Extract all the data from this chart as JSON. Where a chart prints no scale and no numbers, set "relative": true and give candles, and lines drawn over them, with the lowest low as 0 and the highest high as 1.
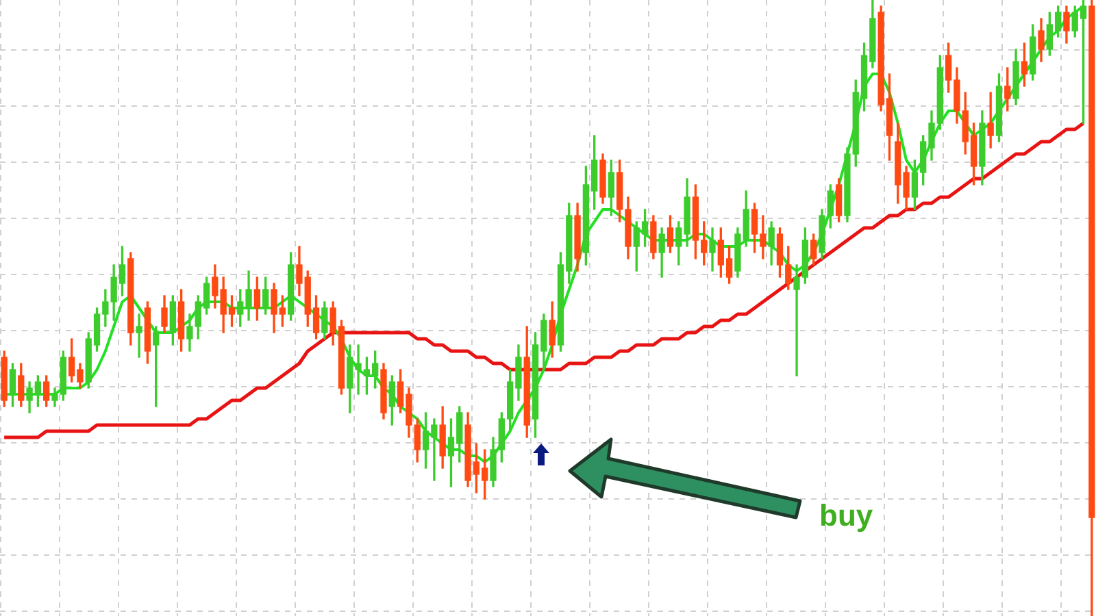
{
  "chart_data": {
    "type": "candlestick",
    "relative": true,
    "grid": true,
    "legend": false,
    "categories": [
      null,
      null,
      null,
      null,
      null,
      null,
      null,
      null,
      null,
      null,
      null,
      null,
      null,
      null,
      null,
      null,
      null,
      null,
      null,
      null,
      null,
      null,
      null,
      null,
      null,
      null,
      null,
      null,
      null,
      null,
      null,
      null,
      null,
      null,
      null,
      null,
      null,
      null,
      null,
      null,
      null,
      null,
      null,
      null,
      null,
      null,
      null,
      null,
      null,
      null,
      null,
      null,
      null,
      null,
      null,
      null,
      null,
      null,
      null,
      null,
      null,
      null,
      null,
      null,
      null,
      null,
      null,
      null,
      null,
      null,
      null,
      null,
      null,
      null,
      null,
      null,
      null,
      null,
      null,
      null,
      null,
      null,
      null,
      null,
      null,
      null,
      null,
      null,
      null,
      null,
      null,
      null,
      null,
      null,
      null,
      null,
      null,
      null,
      null,
      null,
      null,
      null,
      null,
      null,
      null,
      null,
      null,
      null,
      null,
      null,
      null,
      null,
      null,
      null,
      null,
      null,
      null,
      null,
      null,
      null,
      null,
      null,
      null,
      null,
      null,
      null,
      null,
      null,
      null,
      null
    ],
    "ohlc": [
      [
        0.42,
        0.43,
        0.34,
        0.35
      ],
      [
        0.36,
        0.41,
        0.34,
        0.4
      ],
      [
        0.39,
        0.41,
        0.34,
        0.35
      ],
      [
        0.35,
        0.38,
        0.33,
        0.37
      ],
      [
        0.36,
        0.39,
        0.34,
        0.38
      ],
      [
        0.38,
        0.39,
        0.34,
        0.35
      ],
      [
        0.35,
        0.37,
        0.34,
        0.36
      ],
      [
        0.36,
        0.43,
        0.35,
        0.42
      ],
      [
        0.42,
        0.45,
        0.38,
        0.39
      ],
      [
        0.4,
        0.41,
        0.37,
        0.38
      ],
      [
        0.38,
        0.46,
        0.37,
        0.45
      ],
      [
        0.44,
        0.5,
        0.43,
        0.49
      ],
      [
        0.49,
        0.53,
        0.47,
        0.51
      ],
      [
        0.51,
        0.57,
        0.48,
        0.55
      ],
      [
        0.54,
        0.6,
        0.52,
        0.57
      ],
      [
        0.58,
        0.59,
        0.44,
        0.46
      ],
      [
        0.46,
        0.49,
        0.42,
        0.47
      ],
      [
        0.5,
        0.51,
        0.41,
        0.43
      ],
      [
        0.44,
        0.47,
        0.34,
        0.46
      ],
      [
        0.5,
        0.52,
        0.46,
        0.47
      ],
      [
        0.46,
        0.52,
        0.44,
        0.51
      ],
      [
        0.51,
        0.53,
        0.43,
        0.45
      ],
      [
        0.45,
        0.49,
        0.43,
        0.47
      ],
      [
        0.47,
        0.52,
        0.45,
        0.51
      ],
      [
        0.5,
        0.55,
        0.49,
        0.54
      ],
      [
        0.55,
        0.57,
        0.5,
        0.52
      ],
      [
        0.53,
        0.55,
        0.46,
        0.49
      ],
      [
        0.5,
        0.52,
        0.47,
        0.49
      ],
      [
        0.49,
        0.53,
        0.47,
        0.51
      ],
      [
        0.5,
        0.56,
        0.48,
        0.53
      ],
      [
        0.53,
        0.55,
        0.48,
        0.5
      ],
      [
        0.5,
        0.55,
        0.49,
        0.53
      ],
      [
        0.53,
        0.54,
        0.46,
        0.49
      ],
      [
        0.5,
        0.52,
        0.47,
        0.49
      ],
      [
        0.49,
        0.59,
        0.48,
        0.57
      ],
      [
        0.57,
        0.6,
        0.52,
        0.54
      ],
      [
        0.55,
        0.56,
        0.47,
        0.49
      ],
      [
        0.5,
        0.52,
        0.45,
        0.46
      ],
      [
        0.46,
        0.51,
        0.45,
        0.5
      ],
      [
        0.5,
        0.51,
        0.44,
        0.46
      ],
      [
        0.47,
        0.48,
        0.36,
        0.37
      ],
      [
        0.37,
        0.44,
        0.33,
        0.42
      ],
      [
        0.4,
        0.44,
        0.36,
        0.41
      ],
      [
        0.39,
        0.42,
        0.36,
        0.4
      ],
      [
        0.39,
        0.43,
        0.37,
        0.41
      ],
      [
        0.4,
        0.41,
        0.32,
        0.33
      ],
      [
        0.34,
        0.39,
        0.31,
        0.38
      ],
      [
        0.38,
        0.4,
        0.33,
        0.34
      ],
      [
        0.36,
        0.37,
        0.29,
        0.31
      ],
      [
        0.31,
        0.32,
        0.25,
        0.27
      ],
      [
        0.27,
        0.33,
        0.24,
        0.3
      ],
      [
        0.29,
        0.32,
        0.22,
        0.31
      ],
      [
        0.31,
        0.34,
        0.24,
        0.26
      ],
      [
        0.26,
        0.32,
        0.21,
        0.29
      ],
      [
        0.28,
        0.34,
        0.25,
        0.33
      ],
      [
        0.31,
        0.33,
        0.21,
        0.22
      ],
      [
        0.25,
        0.28,
        0.2,
        0.23
      ],
      [
        0.24,
        0.27,
        0.19,
        0.22
      ],
      [
        0.22,
        0.29,
        0.21,
        0.27
      ],
      [
        0.27,
        0.33,
        0.25,
        0.32
      ],
      [
        0.32,
        0.4,
        0.3,
        0.38
      ],
      [
        0.37,
        0.44,
        0.35,
        0.42
      ],
      [
        0.42,
        0.47,
        0.29,
        0.31
      ],
      [
        0.32,
        0.46,
        0.29,
        0.44
      ],
      [
        0.43,
        0.49,
        0.4,
        0.48
      ],
      [
        0.48,
        0.51,
        0.42,
        0.44
      ],
      [
        0.44,
        0.59,
        0.43,
        0.57
      ],
      [
        0.56,
        0.67,
        0.54,
        0.65
      ],
      [
        0.65,
        0.67,
        0.56,
        0.58
      ],
      [
        0.59,
        0.73,
        0.57,
        0.7
      ],
      [
        0.69,
        0.78,
        0.66,
        0.74
      ],
      [
        0.74,
        0.75,
        0.67,
        0.68
      ],
      [
        0.68,
        0.74,
        0.65,
        0.72
      ],
      [
        0.72,
        0.74,
        0.64,
        0.66
      ],
      [
        0.66,
        0.68,
        0.58,
        0.6
      ],
      [
        0.6,
        0.64,
        0.56,
        0.63
      ],
      [
        0.62,
        0.66,
        0.6,
        0.64
      ],
      [
        0.64,
        0.65,
        0.58,
        0.59
      ],
      [
        0.59,
        0.63,
        0.55,
        0.62
      ],
      [
        0.63,
        0.65,
        0.59,
        0.6
      ],
      [
        0.6,
        0.64,
        0.57,
        0.63
      ],
      [
        0.62,
        0.71,
        0.6,
        0.68
      ],
      [
        0.68,
        0.7,
        0.58,
        0.61
      ],
      [
        0.61,
        0.64,
        0.57,
        0.59
      ],
      [
        0.59,
        0.63,
        0.56,
        0.61
      ],
      [
        0.61,
        0.63,
        0.55,
        0.57
      ],
      [
        0.58,
        0.6,
        0.54,
        0.55
      ],
      [
        0.56,
        0.63,
        0.55,
        0.62
      ],
      [
        0.61,
        0.69,
        0.6,
        0.66
      ],
      [
        0.66,
        0.67,
        0.59,
        0.62
      ],
      [
        0.62,
        0.65,
        0.58,
        0.6
      ],
      [
        0.6,
        0.64,
        0.57,
        0.63
      ],
      [
        0.62,
        0.63,
        0.55,
        0.57
      ],
      [
        0.57,
        0.6,
        0.53,
        0.54
      ],
      [
        0.53,
        0.57,
        0.39,
        0.55
      ],
      [
        0.55,
        0.63,
        0.54,
        0.61
      ],
      [
        0.61,
        0.62,
        0.57,
        0.58
      ],
      [
        0.59,
        0.66,
        0.58,
        0.65
      ],
      [
        0.65,
        0.7,
        0.63,
        0.69
      ],
      [
        0.7,
        0.71,
        0.64,
        0.65
      ],
      [
        0.65,
        0.76,
        0.64,
        0.75
      ],
      [
        0.75,
        0.87,
        0.73,
        0.85
      ],
      [
        0.84,
        0.93,
        0.82,
        0.91
      ],
      [
        0.9,
        1.0,
        0.89,
        0.97
      ],
      [
        0.98,
        0.99,
        0.82,
        0.83
      ],
      [
        0.84,
        0.88,
        0.74,
        0.78
      ],
      [
        0.77,
        0.8,
        0.67,
        0.7
      ],
      [
        0.72,
        0.73,
        0.66,
        0.68
      ],
      [
        0.68,
        0.74,
        0.66,
        0.72
      ],
      [
        0.72,
        0.78,
        0.7,
        0.77
      ],
      [
        0.76,
        0.82,
        0.74,
        0.8
      ],
      [
        0.8,
        0.91,
        0.79,
        0.89
      ],
      [
        0.91,
        0.93,
        0.85,
        0.87
      ],
      [
        0.87,
        0.89,
        0.8,
        0.82
      ],
      [
        0.82,
        0.85,
        0.75,
        0.77
      ],
      [
        0.78,
        0.8,
        0.7,
        0.73
      ],
      [
        0.73,
        0.82,
        0.7,
        0.8
      ],
      [
        0.8,
        0.85,
        0.76,
        0.78
      ],
      [
        0.78,
        0.88,
        0.77,
        0.86
      ],
      [
        0.86,
        0.89,
        0.82,
        0.84
      ],
      [
        0.84,
        0.92,
        0.83,
        0.9
      ],
      [
        0.9,
        0.93,
        0.86,
        0.88
      ],
      [
        0.88,
        0.96,
        0.87,
        0.94
      ],
      [
        0.95,
        0.97,
        0.9,
        0.92
      ],
      [
        0.92,
        0.98,
        0.91,
        0.96
      ],
      [
        0.95,
        0.99,
        0.94,
        0.98
      ],
      [
        0.98,
        0.99,
        0.93,
        0.95
      ],
      [
        0.95,
        0.99,
        0.94,
        0.98
      ],
      [
        0.97,
        1.0,
        0.8,
        0.99
      ],
      [
        0.99,
        1.0,
        0.0,
        0.16
      ]
    ],
    "series": [
      {
        "type": "line",
        "color": "#22e022",
        "values": [
          0.36,
          0.36,
          0.36,
          0.36,
          0.36,
          0.36,
          0.36,
          0.37,
          0.37,
          0.37,
          0.38,
          0.4,
          0.43,
          0.47,
          0.51,
          0.52,
          0.5,
          0.48,
          0.46,
          0.46,
          0.46,
          0.47,
          0.48,
          0.5,
          0.51,
          0.51,
          0.51,
          0.5,
          0.5,
          0.5,
          0.5,
          0.5,
          0.5,
          0.51,
          0.52,
          0.51,
          0.5,
          0.49,
          0.48,
          0.47,
          0.45,
          0.42,
          0.4,
          0.39,
          0.39,
          0.37,
          0.36,
          0.34,
          0.33,
          0.32,
          0.3,
          0.29,
          0.28,
          0.27,
          0.27,
          0.26,
          0.26,
          0.25,
          0.26,
          0.28,
          0.3,
          0.33,
          0.35,
          0.37,
          0.4,
          0.44,
          0.49,
          0.53,
          0.57,
          0.62,
          0.64,
          0.66,
          0.66,
          0.65,
          0.64,
          0.63,
          0.62,
          0.61,
          0.61,
          0.61,
          0.61,
          0.61,
          0.62,
          0.62,
          0.61,
          0.6,
          0.6,
          0.6,
          0.61,
          0.61,
          0.61,
          0.6,
          0.59,
          0.57,
          0.56,
          0.57,
          0.59,
          0.62,
          0.66,
          0.7,
          0.75,
          0.8,
          0.86,
          0.88,
          0.88,
          0.85,
          0.8,
          0.74,
          0.72,
          0.74,
          0.77,
          0.8,
          0.82,
          0.82,
          0.8,
          0.78,
          0.79,
          0.8,
          0.82,
          0.84,
          0.86,
          0.88,
          0.9,
          0.92,
          0.94,
          0.95,
          0.97,
          0.98,
          0.99,
          null
        ]
      },
      {
        "type": "line",
        "color": "#e81414",
        "values": [
          0.29,
          0.29,
          0.29,
          0.29,
          0.29,
          0.3,
          0.3,
          0.3,
          0.3,
          0.3,
          0.3,
          0.31,
          0.31,
          0.31,
          0.31,
          0.31,
          0.31,
          0.31,
          0.31,
          0.31,
          0.31,
          0.31,
          0.31,
          0.32,
          0.32,
          0.33,
          0.34,
          0.35,
          0.35,
          0.36,
          0.37,
          0.37,
          0.38,
          0.39,
          0.4,
          0.41,
          0.43,
          0.44,
          0.45,
          0.46,
          0.46,
          0.46,
          0.46,
          0.46,
          0.46,
          0.46,
          0.46,
          0.46,
          0.46,
          0.45,
          0.45,
          0.44,
          0.44,
          0.43,
          0.43,
          0.43,
          0.42,
          0.42,
          0.41,
          0.41,
          0.4,
          0.4,
          0.4,
          0.4,
          0.4,
          0.4,
          0.4,
          0.41,
          0.41,
          0.41,
          0.42,
          0.42,
          0.42,
          0.43,
          0.43,
          0.44,
          0.44,
          0.44,
          0.45,
          0.45,
          0.45,
          0.46,
          0.46,
          0.47,
          0.47,
          0.48,
          0.48,
          0.49,
          0.49,
          0.5,
          0.51,
          0.52,
          0.53,
          0.54,
          0.55,
          0.56,
          0.57,
          0.58,
          0.59,
          0.6,
          0.61,
          0.62,
          0.63,
          0.63,
          0.64,
          0.65,
          0.65,
          0.66,
          0.66,
          0.67,
          0.67,
          0.68,
          0.68,
          0.69,
          0.7,
          0.71,
          0.71,
          0.72,
          0.73,
          0.74,
          0.75,
          0.75,
          0.76,
          0.77,
          0.77,
          0.78,
          0.79,
          0.79,
          0.8,
          null
        ]
      }
    ],
    "annotations": [
      "buy"
    ]
  }
}
